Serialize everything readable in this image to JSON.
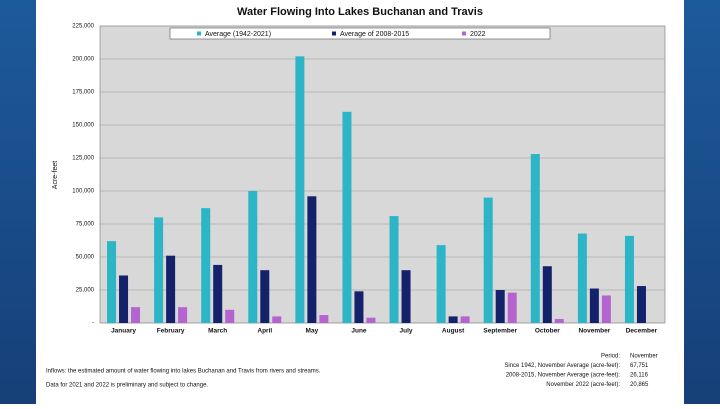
{
  "chart_data": {
    "type": "bar",
    "title": "Water Flowing Into Lakes Buchanan and Travis",
    "y_label": "Acre-feet",
    "categories": [
      "January",
      "February",
      "March",
      "April",
      "May",
      "June",
      "July",
      "August",
      "September",
      "October",
      "November",
      "December"
    ],
    "series": [
      {
        "name": "Average (1942-2021)",
        "color": "#2bb5c6",
        "values": [
          62000,
          80000,
          87000,
          100000,
          202000,
          160000,
          81000,
          59000,
          95000,
          128000,
          67751,
          66000
        ]
      },
      {
        "name": "Average of 2008-2015",
        "color": "#14226b",
        "values": [
          36000,
          51000,
          44000,
          40000,
          96000,
          24000,
          40000,
          5000,
          25000,
          43000,
          26116,
          28000
        ]
      },
      {
        "name": "2022",
        "color": "#b463cf",
        "values": [
          12000,
          12000,
          10000,
          5000,
          6000,
          4000,
          null,
          5000,
          23000,
          3000,
          20865,
          null
        ]
      }
    ],
    "ylim": [
      0,
      225000
    ],
    "yticks": [
      {
        "value": 0,
        "label": "-"
      },
      {
        "value": 25000,
        "label": "25,000"
      },
      {
        "value": 50000,
        "label": "50,000"
      },
      {
        "value": 75000,
        "label": "75,000"
      },
      {
        "value": 100000,
        "label": "100,000"
      },
      {
        "value": 125000,
        "label": "125,000"
      },
      {
        "value": 150000,
        "label": "150,000"
      },
      {
        "value": 175000,
        "label": "175,000"
      },
      {
        "value": 200000,
        "label": "200,000"
      },
      {
        "value": 225000,
        "label": "225,000"
      }
    ],
    "grid": true,
    "legend": "top",
    "notes": [
      "Inflows: the estimated amount of water flowing into lakes Buchanan and Travis from rivers and streams.",
      "Data for 2021 and 2022 is preliminary and subject to change."
    ],
    "summary": [
      [
        "Period:",
        "November"
      ],
      [
        "Since 1942, November Average (acre-feet):",
        "67,751"
      ],
      [
        "2008-2015, November Average (acre-feet):",
        "26,116"
      ],
      [
        "November 2022 (acre-feet):",
        "20,865"
      ]
    ]
  }
}
